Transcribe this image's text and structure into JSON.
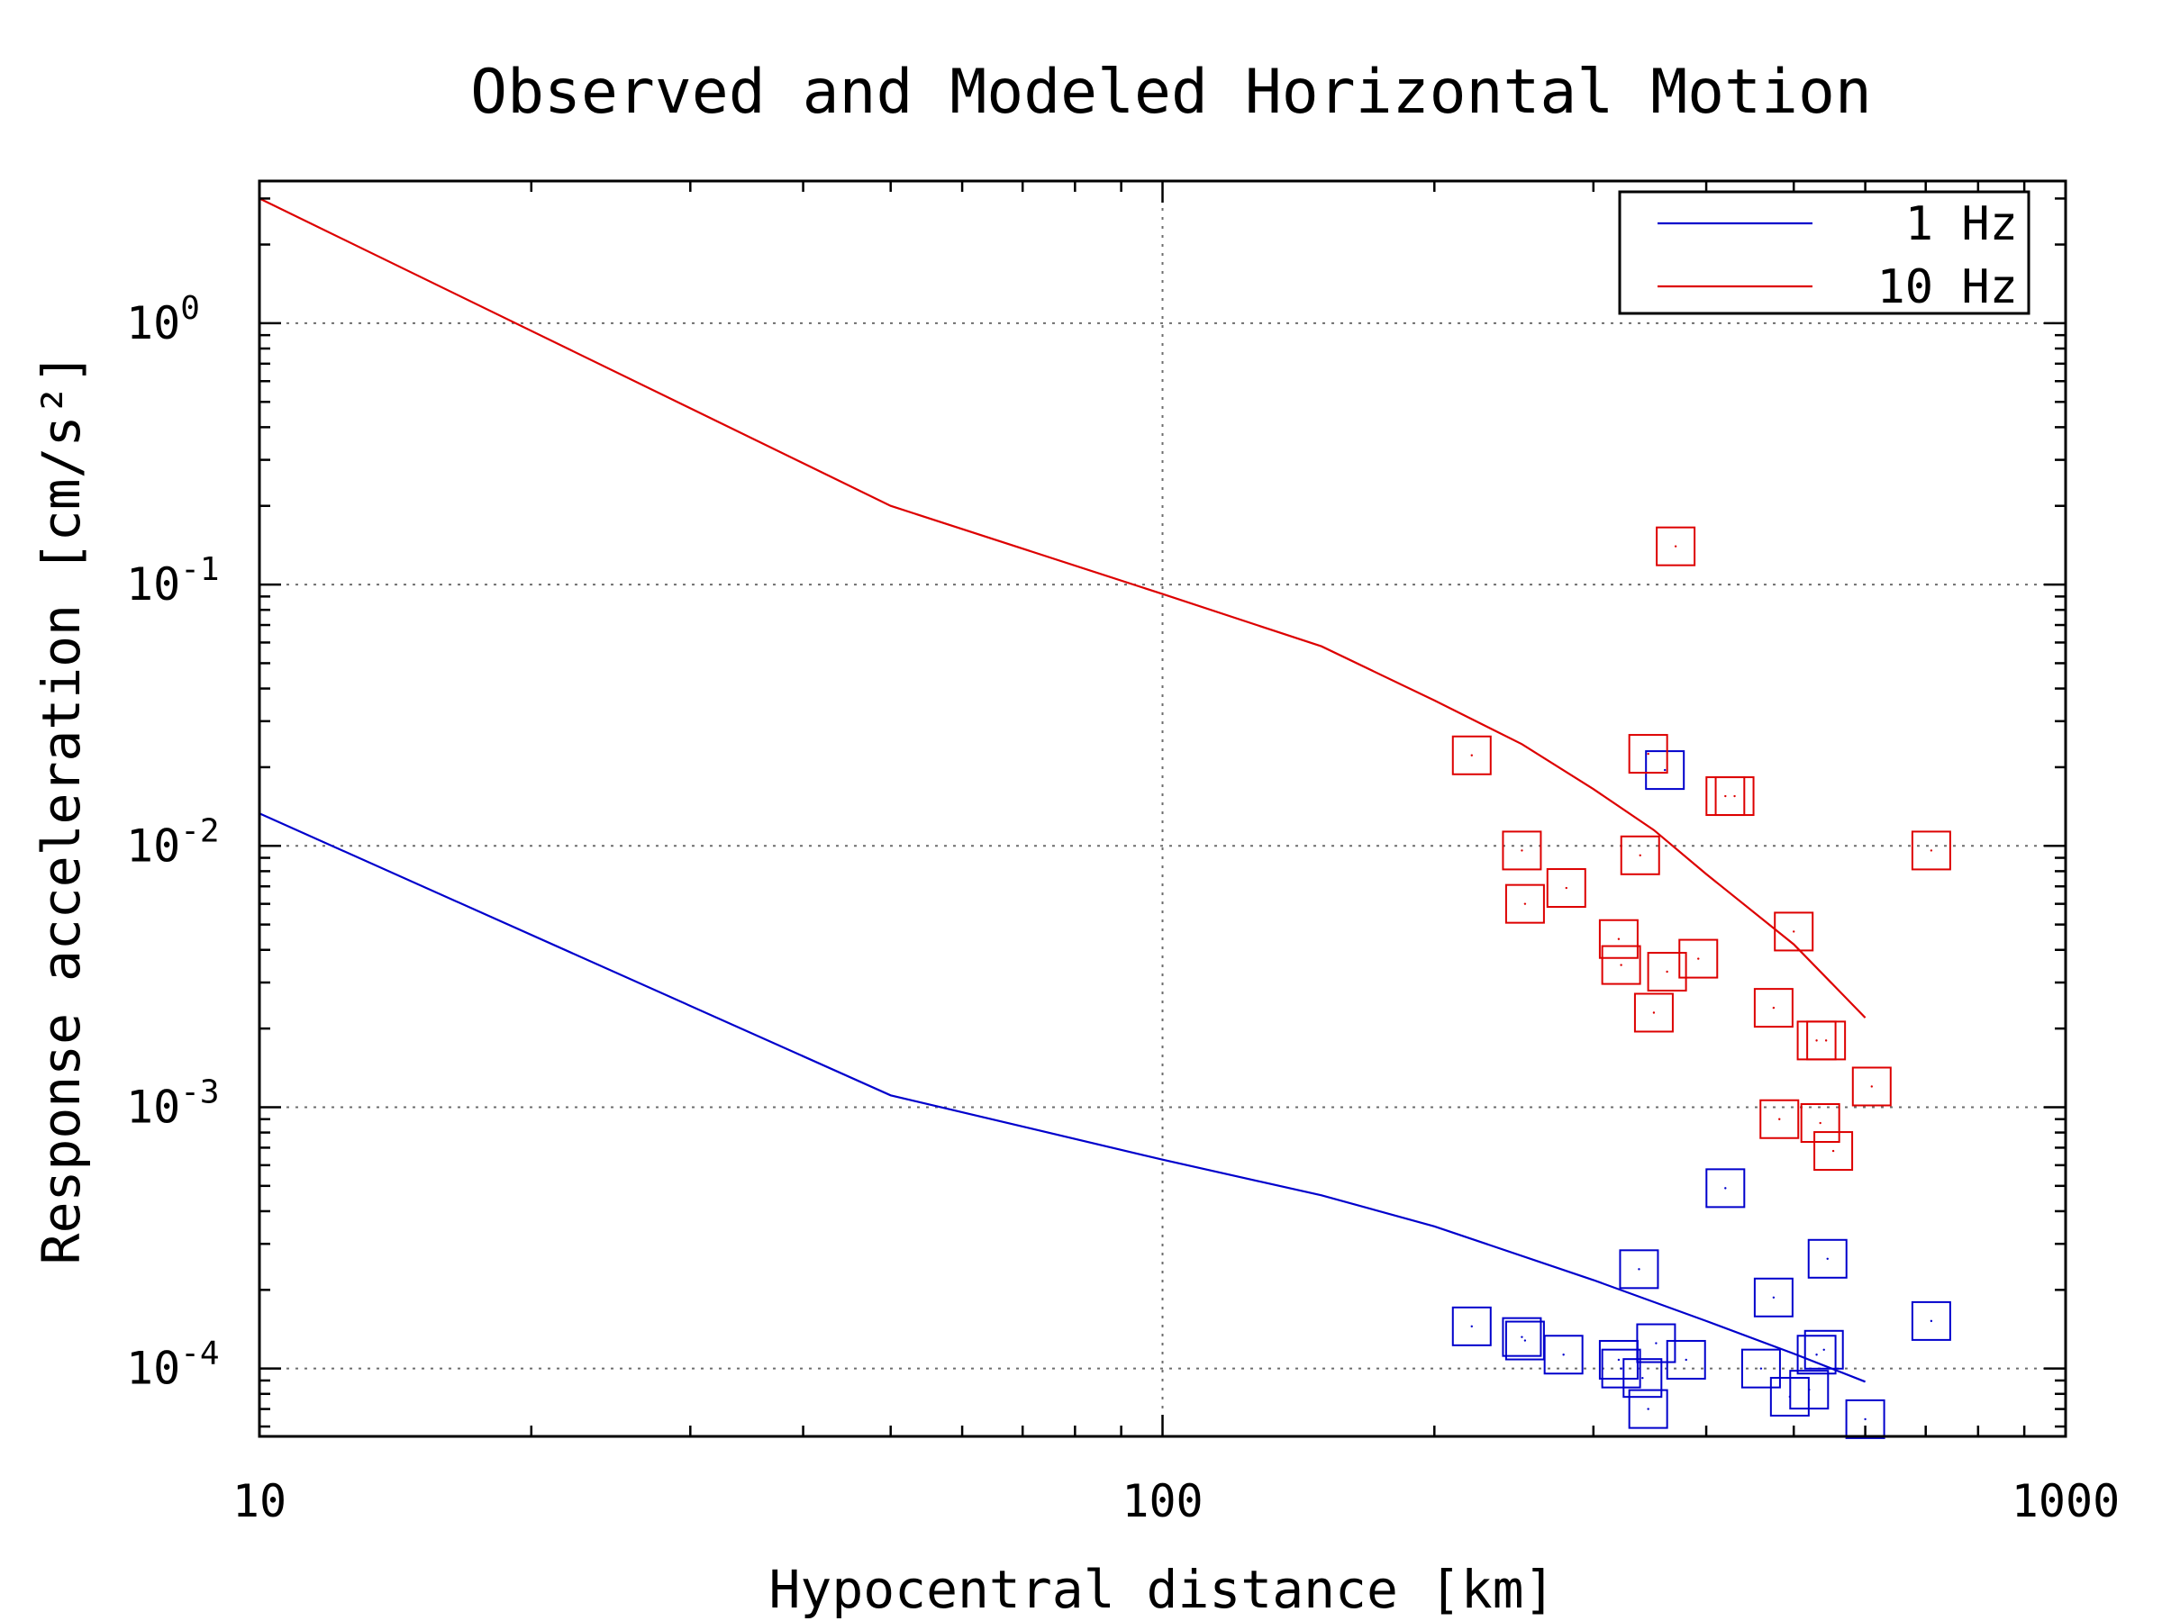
{
  "chart_data": {
    "type": "scatter",
    "title": "Observed and Modeled Horizontal Motion",
    "xlabel": "Hypocentral distance [km]",
    "ylabel": "Response acceleration [cm/s²]",
    "x_scale": "log",
    "y_scale": "log",
    "xlim": [
      10,
      1000
    ],
    "ylim": [
      5.5e-05,
      3.5
    ],
    "x_tick_labels": [
      "10",
      "100",
      "1000"
    ],
    "y_tick_labels": [
      "10-4",
      "10-3",
      "10-2",
      "10-1",
      "100"
    ],
    "grid": true,
    "legend_position": "top-right",
    "series": [
      {
        "name": "1 Hz",
        "color": "#0000cc",
        "kind": "line",
        "x": [
          10,
          50,
          100,
          150,
          200,
          300,
          400,
          500,
          600
        ],
        "y": [
          0.0133,
          0.00111,
          0.00063,
          0.00046,
          0.00035,
          0.000218,
          0.000152,
          0.000114,
          8.9e-05
        ]
      },
      {
        "name": "10 Hz",
        "color": "#dd0000",
        "kind": "line",
        "x": [
          10,
          50,
          100,
          150,
          200,
          250,
          300,
          350,
          400,
          500,
          600
        ],
        "y": [
          3.0,
          0.2,
          0.092,
          0.058,
          0.036,
          0.0245,
          0.0165,
          0.0115,
          0.0078,
          0.0042,
          0.0022
        ]
      },
      {
        "name": "1 Hz",
        "color": "#0000cc",
        "kind": "markers",
        "x": [
          220,
          250,
          252,
          278,
          320,
          322,
          337,
          340,
          345,
          352,
          360,
          380,
          420,
          460,
          475,
          495,
          520,
          530,
          540,
          545,
          600,
          710
        ],
        "y": [
          0.000145,
          0.000132,
          0.000128,
          0.000113,
          0.000108,
          0.0001,
          0.00024,
          9.2e-05,
          7e-05,
          0.000125,
          0.0195,
          0.000108,
          0.00049,
          0.0001,
          0.000187,
          7.8e-05,
          8.3e-05,
          0.000113,
          0.000118,
          0.000263,
          6.4e-05,
          0.000152
        ]
      },
      {
        "name": "10 Hz",
        "color": "#dd0000",
        "kind": "markers",
        "x": [
          220,
          250,
          252,
          280,
          320,
          322,
          338,
          345,
          350,
          362,
          370,
          392,
          420,
          430,
          475,
          482,
          500,
          530,
          535,
          543,
          610,
          710
        ],
        "y": [
          0.0222,
          0.0096,
          0.006,
          0.0069,
          0.0044,
          0.0035,
          0.0092,
          0.0225,
          0.0023,
          0.0033,
          0.14,
          0.0037,
          0.0155,
          0.0155,
          0.0024,
          0.0009,
          0.0047,
          0.0018,
          0.00087,
          0.0018,
          0.0012,
          0.0096
        ]
      },
      {
        "name": "10 Hz",
        "color": "#dd0000",
        "kind": "markers",
        "x": [
          553
        ],
        "y": [
          0.00068
        ]
      }
    ]
  }
}
